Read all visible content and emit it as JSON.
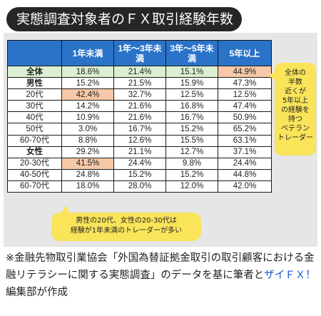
{
  "title": "実態調査対象者のＦＸ取引経験年数",
  "chart_data": {
    "type": "table",
    "columns": [
      {
        "label": "1年未満"
      },
      {
        "label": "1年～3年未満"
      },
      {
        "label": "3年～5年未満"
      },
      {
        "label": "5年以上"
      }
    ],
    "rows": [
      {
        "label": "全体",
        "kind": "total",
        "values": [
          "18.6%",
          "21.4%",
          "15.1%",
          "44.9%"
        ],
        "highlight": [
          3
        ]
      },
      {
        "label": "男性",
        "kind": "group",
        "values": [
          "15.2%",
          "21.5%",
          "15.9%",
          "47.3%"
        ],
        "highlight": []
      },
      {
        "label": "20代",
        "kind": "sub",
        "values": [
          "42.4%",
          "32.7%",
          "12.5%",
          "12.5%"
        ],
        "highlight": [
          0
        ]
      },
      {
        "label": "30代",
        "kind": "sub",
        "values": [
          "14.2%",
          "21.6%",
          "16.8%",
          "47.4%"
        ],
        "highlight": []
      },
      {
        "label": "40代",
        "kind": "sub",
        "values": [
          "10.9%",
          "21.6%",
          "16.7%",
          "50.9%"
        ],
        "highlight": []
      },
      {
        "label": "50代",
        "kind": "sub",
        "values": [
          "3.0%",
          "16.7%",
          "15.2%",
          "65.2%"
        ],
        "highlight": []
      },
      {
        "label": "60-70代",
        "kind": "sub",
        "values": [
          "8.8%",
          "12.6%",
          "15.5%",
          "63.1%"
        ],
        "highlight": []
      },
      {
        "label": "女性",
        "kind": "group",
        "values": [
          "29.2%",
          "21.1%",
          "12.7%",
          "37.1%"
        ],
        "highlight": []
      },
      {
        "label": "20-30代",
        "kind": "sub",
        "values": [
          "41.5%",
          "24.4%",
          "9.8%",
          "24.4%"
        ],
        "highlight": [
          0
        ]
      },
      {
        "label": "40-50代",
        "kind": "sub",
        "values": [
          "24.8%",
          "15.2%",
          "15.2%",
          "44.8%"
        ],
        "highlight": []
      },
      {
        "label": "60-70代",
        "kind": "sub",
        "values": [
          "18.0%",
          "28.0%",
          "12.0%",
          "42.0%"
        ],
        "highlight": []
      }
    ]
  },
  "annotations": {
    "right": [
      "全体の",
      "半数",
      "近くが",
      "5年以上",
      "の経験を",
      "持つ",
      "ベテラン",
      "トレーダー"
    ],
    "bottom": [
      "男性の20代、女性の20-30代は",
      "経験が1年未満のトレーダーが多い"
    ]
  },
  "footnote": {
    "text_before": "※金融先物取引業協会「外国為替証拠金取引の取引顧客における金融リテラシーに関する実態調査」のデータを基に筆者と",
    "link": "ザイＦＸ！",
    "text_after": "編集部が作成"
  },
  "colors": {
    "header": "#2a73c8",
    "total_row": "#dcefd2",
    "highlight": "#f7c9a8",
    "bubble": "#f9e45a",
    "link": "#1a56c9"
  }
}
